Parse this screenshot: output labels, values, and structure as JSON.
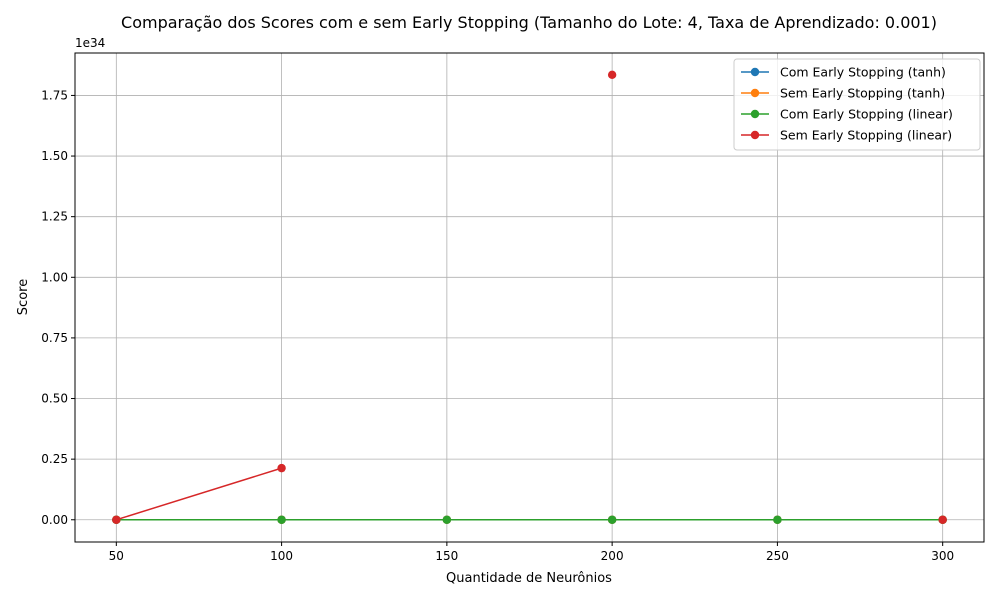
{
  "chart_data": {
    "type": "line",
    "title": "Comparação dos Scores com e sem Early Stopping (Tamanho do Lote: 4, Taxa de Aprendizado: 0.001)",
    "xlabel": "Quantidade de Neurônios",
    "ylabel": "Score",
    "y_offset_label": "1e34",
    "y_scale": 1e+34,
    "x": [
      50,
      100,
      150,
      200,
      250,
      300
    ],
    "xlim": [
      37.5,
      312.5
    ],
    "ylim": [
      -0.0917,
      1.925
    ],
    "x_ticks": [
      50,
      100,
      150,
      200,
      250,
      300
    ],
    "y_ticks": [
      0.0,
      0.25,
      0.5,
      0.75,
      1.0,
      1.25,
      1.5,
      1.75
    ],
    "y_tick_labels": [
      "0.00",
      "0.25",
      "0.50",
      "0.75",
      "1.00",
      "1.25",
      "1.50",
      "1.75"
    ],
    "grid": true,
    "legend_position": "top-right",
    "series": [
      {
        "name": "Com Early Stopping (tanh)",
        "color": "#1f77b4",
        "values": [
          0,
          0,
          0,
          0,
          0,
          0
        ]
      },
      {
        "name": "Sem Early Stopping (tanh)",
        "color": "#ff7f0e",
        "values": [
          0,
          0,
          0,
          0,
          0,
          0
        ]
      },
      {
        "name": "Com Early Stopping (linear)",
        "color": "#2ca02c",
        "values": [
          0,
          0,
          0,
          0,
          0,
          0
        ]
      },
      {
        "name": "Sem Early Stopping (linear)",
        "color": "#d62728",
        "values": [
          0,
          0.213,
          null,
          1.835,
          null,
          0
        ]
      }
    ]
  }
}
